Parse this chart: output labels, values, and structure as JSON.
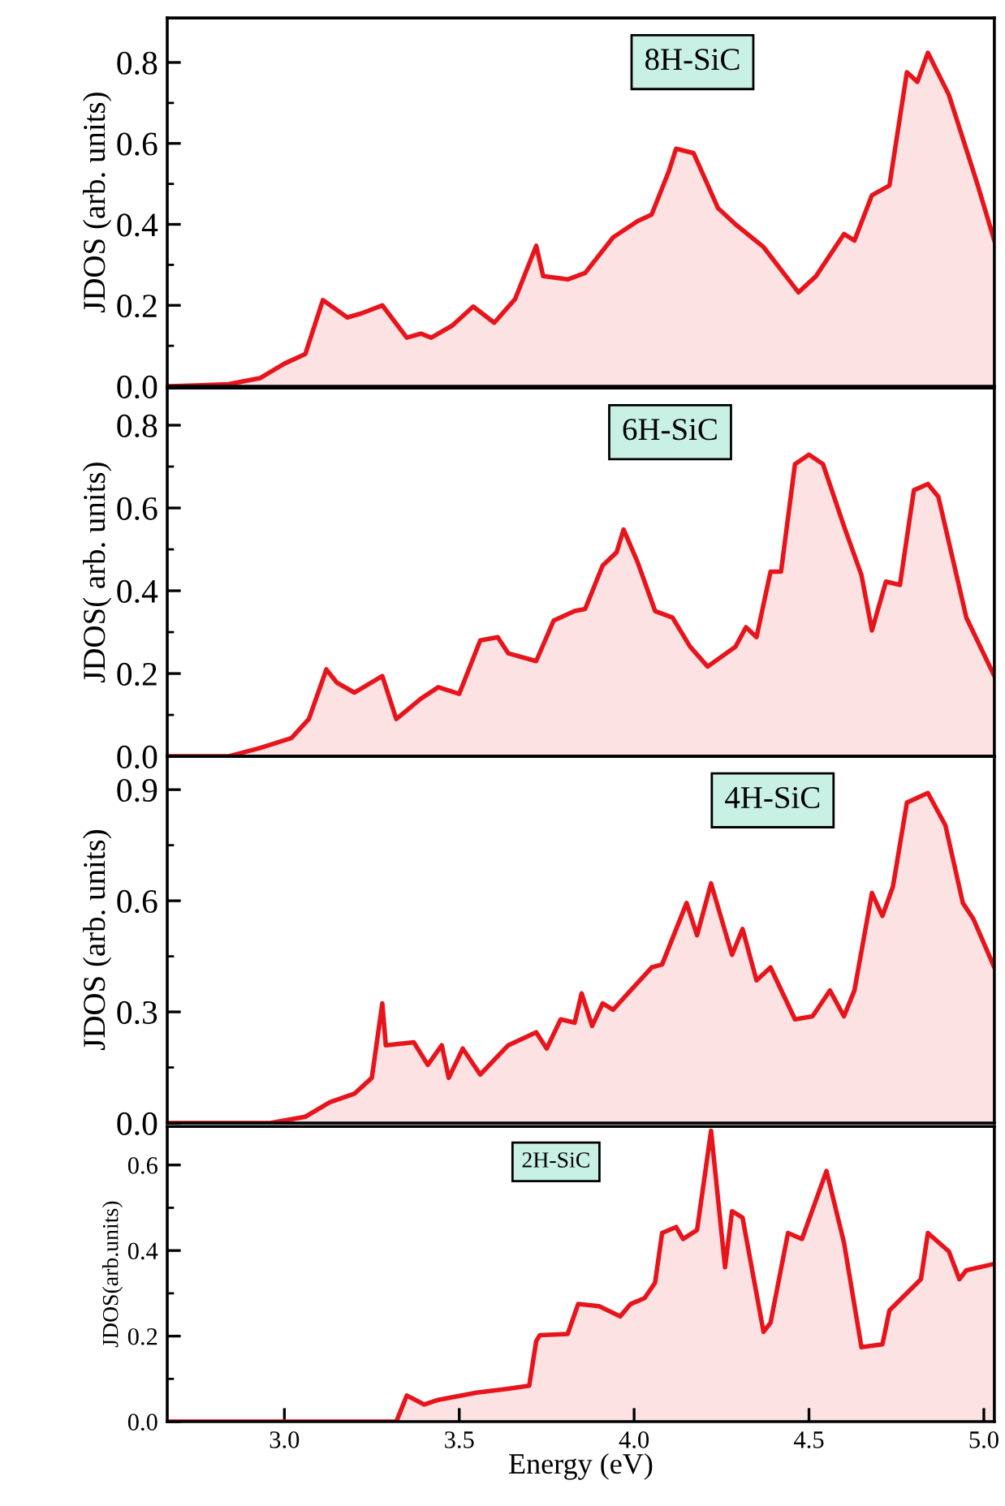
{
  "chart_data": [
    {
      "type": "area",
      "title": "8H-SiC",
      "ylabel": "JDOS (arb. units)",
      "xlim": [
        2.665,
        5.03
      ],
      "ylim": [
        0,
        0.91
      ],
      "yticks": [
        {
          "value": 0,
          "label": "0.0"
        },
        {
          "value": 0.1,
          "label": null
        },
        0.2,
        {
          "value": 0.3,
          "label": null
        },
        0.4,
        {
          "value": 0.5,
          "label": null
        },
        0.6,
        {
          "value": 0.7,
          "label": null
        },
        0.8
      ],
      "series": [
        {
          "color": "#e8141c",
          "x": [
            2.67,
            2.84,
            2.93,
            3.0,
            3.06,
            3.11,
            3.18,
            3.22,
            3.28,
            3.35,
            3.39,
            3.42,
            3.48,
            3.54,
            3.6,
            3.66,
            3.72,
            3.74,
            3.81,
            3.86,
            3.94,
            4.01,
            4.05,
            4.1,
            4.12,
            4.17,
            4.24,
            4.29,
            4.37,
            4.47,
            4.52,
            4.6,
            4.63,
            4.68,
            4.73,
            4.78,
            4.81,
            4.84,
            4.9,
            4.98,
            5.03
          ],
          "values": [
            0,
            0.005,
            0.02,
            0.056,
            0.08,
            0.213,
            0.17,
            0.18,
            0.2,
            0.12,
            0.13,
            0.12,
            0.15,
            0.197,
            0.157,
            0.216,
            0.347,
            0.272,
            0.264,
            0.28,
            0.368,
            0.408,
            0.424,
            0.533,
            0.587,
            0.576,
            0.44,
            0.4,
            0.344,
            0.232,
            0.272,
            0.376,
            0.36,
            0.472,
            0.496,
            0.776,
            0.752,
            0.824,
            0.72,
            0.504,
            0.36
          ]
        }
      ]
    },
    {
      "type": "area",
      "title": "6H-SiC",
      "ylabel": "JDOS( arb. units)",
      "xlim": [
        2.665,
        5.03
      ],
      "ylim": [
        0,
        0.89
      ],
      "yticks": [
        {
          "value": 0,
          "label": "0.0"
        },
        {
          "value": 0.1,
          "label": null
        },
        0.2,
        {
          "value": 0.3,
          "label": null
        },
        0.4,
        {
          "value": 0.5,
          "label": null
        },
        0.6,
        {
          "value": 0.7,
          "label": null
        },
        0.8
      ],
      "series": [
        {
          "color": "#e8141c",
          "x": [
            2.67,
            2.84,
            2.93,
            3.02,
            3.07,
            3.12,
            3.15,
            3.2,
            3.28,
            3.32,
            3.39,
            3.44,
            3.5,
            3.56,
            3.61,
            3.64,
            3.72,
            3.77,
            3.83,
            3.86,
            3.91,
            3.95,
            3.97,
            4.01,
            4.06,
            4.11,
            4.16,
            4.21,
            4.29,
            4.32,
            4.35,
            4.39,
            4.42,
            4.46,
            4.5,
            4.54,
            4.6,
            4.65,
            4.68,
            4.72,
            4.76,
            4.8,
            4.84,
            4.87,
            4.95,
            5.03
          ],
          "values": [
            0,
            0,
            0.02,
            0.044,
            0.09,
            0.21,
            0.178,
            0.154,
            0.194,
            0.09,
            0.139,
            0.167,
            0.151,
            0.28,
            0.288,
            0.249,
            0.23,
            0.328,
            0.351,
            0.356,
            0.461,
            0.493,
            0.548,
            0.469,
            0.351,
            0.335,
            0.265,
            0.217,
            0.265,
            0.312,
            0.288,
            0.446,
            0.446,
            0.706,
            0.729,
            0.706,
            0.556,
            0.438,
            0.304,
            0.422,
            0.414,
            0.643,
            0.658,
            0.627,
            0.335,
            0.194
          ]
        }
      ]
    },
    {
      "type": "area",
      "title": "4H-SiC",
      "ylabel": "JDOS (arb. units)",
      "xlim": [
        2.665,
        5.03
      ],
      "ylim": [
        0,
        0.99
      ],
      "yticks": [
        {
          "value": 0,
          "label": "0.0"
        },
        {
          "value": 0.15,
          "label": null
        },
        0.3,
        {
          "value": 0.45,
          "label": null
        },
        0.6,
        {
          "value": 0.75,
          "label": null
        },
        0.9
      ],
      "series": [
        {
          "color": "#e8141c",
          "x": [
            2.67,
            2.96,
            3.06,
            3.13,
            3.2,
            3.25,
            3.28,
            3.29,
            3.37,
            3.41,
            3.45,
            3.47,
            3.51,
            3.56,
            3.64,
            3.72,
            3.75,
            3.79,
            3.83,
            3.85,
            3.88,
            3.91,
            3.94,
            4.05,
            4.08,
            4.15,
            4.18,
            4.22,
            4.28,
            4.31,
            4.35,
            4.39,
            4.46,
            4.51,
            4.56,
            4.6,
            4.63,
            4.68,
            4.71,
            4.74,
            4.78,
            4.84,
            4.89,
            4.94,
            4.97,
            5.03
          ],
          "values": [
            0,
            0,
            0.017,
            0.056,
            0.079,
            0.122,
            0.323,
            0.21,
            0.218,
            0.157,
            0.21,
            0.122,
            0.201,
            0.131,
            0.21,
            0.245,
            0.201,
            0.28,
            0.271,
            0.35,
            0.262,
            0.323,
            0.306,
            0.42,
            0.428,
            0.594,
            0.507,
            0.647,
            0.454,
            0.524,
            0.385,
            0.42,
            0.28,
            0.288,
            0.358,
            0.288,
            0.358,
            0.621,
            0.559,
            0.638,
            0.865,
            0.891,
            0.804,
            0.594,
            0.551,
            0.42
          ]
        }
      ]
    },
    {
      "type": "area",
      "title": "2H-SiC",
      "ylabel": "JDOS(arb.units)",
      "xlabel": "Energy (eV)",
      "xlim": [
        2.665,
        5.03
      ],
      "ylim": [
        0,
        0.69
      ],
      "xticks": [
        {
          "value": 3,
          "label": "3.0"
        },
        3.5,
        {
          "value": 4,
          "label": "4.0"
        },
        4.5,
        {
          "value": 5,
          "label": "5.0"
        }
      ],
      "yticks": [
        {
          "value": 0,
          "label": "0.0"
        },
        {
          "value": 0.1,
          "label": null
        },
        0.2,
        {
          "value": 0.3,
          "label": null
        },
        0.4,
        {
          "value": 0.5,
          "label": null
        },
        0.6
      ],
      "series": [
        {
          "color": "#e8141c",
          "x": [
            2.67,
            3.32,
            3.35,
            3.4,
            3.44,
            3.55,
            3.64,
            3.7,
            3.72,
            3.73,
            3.81,
            3.84,
            3.9,
            3.96,
            3.99,
            4.03,
            4.06,
            4.08,
            4.12,
            4.14,
            4.18,
            4.22,
            4.26,
            4.28,
            4.31,
            4.37,
            4.39,
            4.44,
            4.48,
            4.55,
            4.6,
            4.65,
            4.71,
            4.73,
            4.82,
            4.84,
            4.9,
            4.93,
            4.95,
            5.03
          ],
          "values": [
            0,
            0,
            0.061,
            0.04,
            0.051,
            0.068,
            0.077,
            0.084,
            0.188,
            0.202,
            0.205,
            0.275,
            0.27,
            0.246,
            0.275,
            0.289,
            0.325,
            0.441,
            0.455,
            0.427,
            0.448,
            0.68,
            0.361,
            0.492,
            0.477,
            0.21,
            0.231,
            0.441,
            0.427,
            0.586,
            0.419,
            0.174,
            0.181,
            0.26,
            0.333,
            0.441,
            0.398,
            0.333,
            0.354,
            0.369
          ]
        }
      ]
    }
  ]
}
